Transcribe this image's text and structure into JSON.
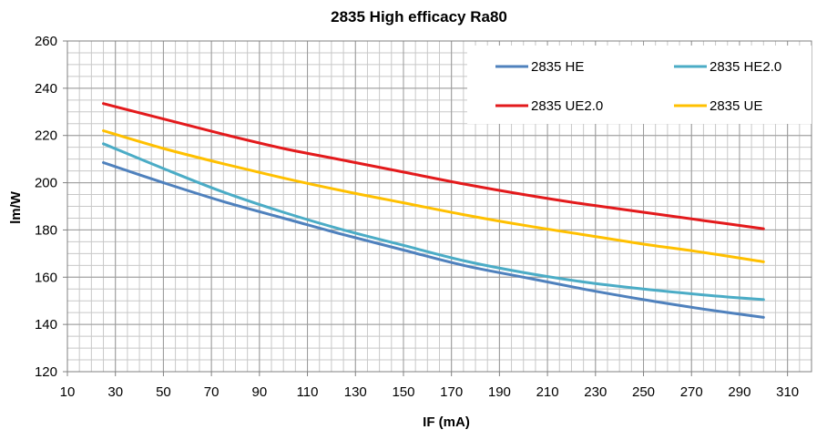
{
  "chart_data": {
    "type": "line",
    "title": "2835 High efficacy Ra80",
    "xlabel": "IF (mA)",
    "ylabel": "lm/W",
    "xlim": [
      10,
      320
    ],
    "ylim": [
      120,
      260
    ],
    "x_ticks": [
      10,
      30,
      50,
      70,
      90,
      110,
      130,
      150,
      170,
      190,
      210,
      230,
      250,
      270,
      290,
      310
    ],
    "y_ticks": [
      120,
      140,
      160,
      180,
      200,
      220,
      240,
      260
    ],
    "grid": true,
    "legend_position": "top-right",
    "x": [
      25,
      50,
      75,
      100,
      125,
      150,
      175,
      200,
      225,
      250,
      275,
      300
    ],
    "series": [
      {
        "name": "2835 HE",
        "color": "#4f81bd",
        "values": [
          208.5,
          200,
          192,
          185,
          178,
          171.5,
          165,
          160,
          155,
          150.5,
          146.5,
          143
        ]
      },
      {
        "name": "2835 HE2.0",
        "color": "#4bacc6",
        "values": [
          216.5,
          206,
          196,
          187.5,
          180,
          173.5,
          167,
          162,
          158,
          155,
          152.5,
          150.5
        ]
      },
      {
        "name": "2835 UE2.0",
        "color": "#e31a1c",
        "values": [
          233.5,
          227,
          220.5,
          214.5,
          209.5,
          204.5,
          199.5,
          195,
          191,
          187.5,
          184,
          180.5
        ]
      },
      {
        "name": "2835 UE",
        "color": "#ffc000",
        "values": [
          222,
          214.5,
          208,
          202,
          196.5,
          191.5,
          186.5,
          182,
          178,
          174,
          170.5,
          166.5
        ]
      }
    ]
  }
}
